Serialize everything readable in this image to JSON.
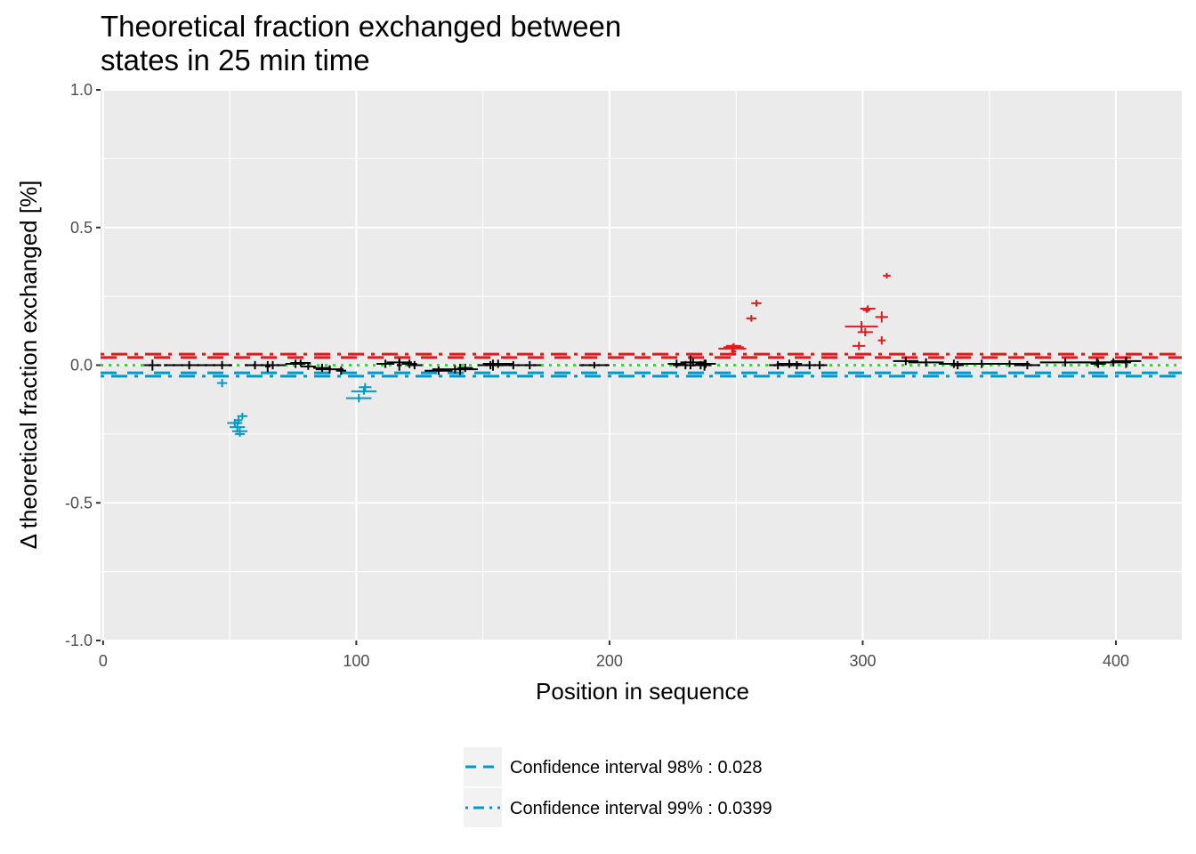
{
  "chart_data": {
    "type": "scatter",
    "title": [
      "Theoretical fraction exchanged between",
      "states in 25 min time"
    ],
    "xlabel": "Position in sequence",
    "ylabel": "Δ theoretical fraction exchanged [%]",
    "xlim": [
      -1,
      426
    ],
    "ylim": [
      -1.0,
      1.0
    ],
    "x_ticks": [
      0,
      100,
      200,
      300,
      400
    ],
    "x_tick_labels": [
      "0",
      "100",
      "200",
      "300",
      "400"
    ],
    "y_ticks": [
      -1.0,
      -0.5,
      0.0,
      0.5,
      1.0
    ],
    "y_tick_labels": [
      "-1.0",
      "-0.5",
      "0.0",
      "0.5",
      "1.0"
    ],
    "grid": true,
    "legend_position": "bottom",
    "colors": {
      "panel": "#ebebeb",
      "grid": "#ffffff",
      "significant_positive": "#e31a1c",
      "significant_negative": "#0099cc",
      "not_significant": "#000000",
      "zero_line": "#00ff00",
      "ci98_upper": "#e31a1c",
      "ci98_lower": "#0099cc",
      "legend_key_bg": "#f2f2f2"
    },
    "confidence_lines": [
      {
        "name": "Confidence interval 98% : 0.028",
        "value": 0.028,
        "style": "dashed"
      },
      {
        "name": "Confidence interval 99% : 0.0399",
        "value": 0.0399,
        "style": "dotdash"
      }
    ],
    "reference_line": {
      "value": 0.0,
      "style": "dotted"
    },
    "series": [
      {
        "category": "significant_positive",
        "points": [
          {
            "start": 243,
            "end": 254,
            "y": 0.06,
            "err": 0.015
          },
          {
            "start": 246,
            "end": 252,
            "y": 0.07,
            "err": 0.01
          },
          {
            "start": 245,
            "end": 253,
            "y": 0.065,
            "err": 0.012
          },
          {
            "start": 248,
            "end": 250,
            "y": 0.05,
            "err": 0.015
          },
          {
            "start": 254,
            "end": 258,
            "y": 0.17,
            "err": 0.012
          },
          {
            "start": 256,
            "end": 260,
            "y": 0.225,
            "err": 0.012
          },
          {
            "start": 293,
            "end": 306,
            "y": 0.14,
            "err": 0.02
          },
          {
            "start": 299,
            "end": 305,
            "y": 0.205,
            "err": 0.012
          },
          {
            "start": 298,
            "end": 304,
            "y": 0.12,
            "err": 0.015
          },
          {
            "start": 296,
            "end": 301,
            "y": 0.07,
            "err": 0.015
          },
          {
            "start": 300,
            "end": 303,
            "y": 0.2,
            "err": 0.01
          },
          {
            "start": 305,
            "end": 310,
            "y": 0.175,
            "err": 0.02
          },
          {
            "start": 306,
            "end": 309,
            "y": 0.09,
            "err": 0.015
          },
          {
            "start": 308,
            "end": 311,
            "y": 0.325,
            "err": 0.01
          }
        ]
      },
      {
        "category": "significant_negative",
        "points": [
          {
            "start": 45,
            "end": 49,
            "y": -0.065,
            "err": 0.015
          },
          {
            "start": 49,
            "end": 55,
            "y": -0.21,
            "err": 0.015
          },
          {
            "start": 50,
            "end": 56,
            "y": -0.225,
            "err": 0.02
          },
          {
            "start": 51,
            "end": 57,
            "y": -0.24,
            "err": 0.015
          },
          {
            "start": 52,
            "end": 55,
            "y": -0.2,
            "err": 0.015
          },
          {
            "start": 52,
            "end": 56,
            "y": -0.25,
            "err": 0.01
          },
          {
            "start": 53,
            "end": 57,
            "y": -0.185,
            "err": 0.012
          },
          {
            "start": 96,
            "end": 106,
            "y": -0.12,
            "err": 0.015
          },
          {
            "start": 98,
            "end": 108,
            "y": -0.095,
            "err": 0.012
          },
          {
            "start": 101,
            "end": 106,
            "y": -0.08,
            "err": 0.015
          }
        ]
      },
      {
        "category": "not_significant",
        "points": [
          {
            "start": 16,
            "end": 23,
            "y": 0.0,
            "err": 0.02
          },
          {
            "start": 24,
            "end": 44,
            "y": 0.0,
            "err": 0.015
          },
          {
            "start": 43,
            "end": 51,
            "y": 0.0,
            "err": 0.015
          },
          {
            "start": 56,
            "end": 64,
            "y": 0.0,
            "err": 0.015
          },
          {
            "start": 62,
            "end": 72,
            "y": 0.0,
            "err": 0.015
          },
          {
            "start": 64,
            "end": 66,
            "y": -0.005,
            "err": 0.02
          },
          {
            "start": 72,
            "end": 80,
            "y": 0.005,
            "err": 0.015
          },
          {
            "start": 74,
            "end": 82,
            "y": 0.008,
            "err": 0.012
          },
          {
            "start": 78,
            "end": 84,
            "y": -0.005,
            "err": 0.012
          },
          {
            "start": 83,
            "end": 90,
            "y": -0.01,
            "err": 0.015
          },
          {
            "start": 84,
            "end": 95,
            "y": -0.015,
            "err": 0.015
          },
          {
            "start": 92,
            "end": 96,
            "y": -0.02,
            "err": 0.015
          },
          {
            "start": 108,
            "end": 115,
            "y": 0.005,
            "err": 0.015
          },
          {
            "start": 112,
            "end": 122,
            "y": 0.01,
            "err": 0.015
          },
          {
            "start": 116,
            "end": 118,
            "y": 0.0,
            "err": 0.02
          },
          {
            "start": 118,
            "end": 124,
            "y": 0.005,
            "err": 0.015
          },
          {
            "start": 120,
            "end": 126,
            "y": 0.0,
            "err": 0.015
          },
          {
            "start": 127,
            "end": 138,
            "y": -0.02,
            "err": 0.015
          },
          {
            "start": 130,
            "end": 148,
            "y": -0.015,
            "err": 0.015
          },
          {
            "start": 139,
            "end": 143,
            "y": -0.015,
            "err": 0.02
          },
          {
            "start": 140,
            "end": 146,
            "y": -0.01,
            "err": 0.015
          },
          {
            "start": 148,
            "end": 158,
            "y": 0.0,
            "err": 0.015
          },
          {
            "start": 150,
            "end": 162,
            "y": 0.005,
            "err": 0.015
          },
          {
            "start": 152,
            "end": 156,
            "y": 0.0,
            "err": 0.02
          },
          {
            "start": 156,
            "end": 168,
            "y": 0.0,
            "err": 0.015
          },
          {
            "start": 164,
            "end": 173,
            "y": 0.0,
            "err": 0.015
          },
          {
            "start": 188,
            "end": 200,
            "y": 0.0,
            "err": 0.012
          },
          {
            "start": 223,
            "end": 230,
            "y": 0.005,
            "err": 0.015
          },
          {
            "start": 225,
            "end": 235,
            "y": 0.0,
            "err": 0.015
          },
          {
            "start": 228,
            "end": 238,
            "y": 0.01,
            "err": 0.015
          },
          {
            "start": 231,
            "end": 233,
            "y": 0.01,
            "err": 0.025
          },
          {
            "start": 232,
            "end": 240,
            "y": 0.0,
            "err": 0.015
          },
          {
            "start": 234,
            "end": 242,
            "y": 0.005,
            "err": 0.015
          },
          {
            "start": 236,
            "end": 239,
            "y": 0.0,
            "err": 0.02
          },
          {
            "start": 263,
            "end": 270,
            "y": 0.0,
            "err": 0.015
          },
          {
            "start": 266,
            "end": 276,
            "y": 0.005,
            "err": 0.015
          },
          {
            "start": 270,
            "end": 278,
            "y": 0.0,
            "err": 0.015
          },
          {
            "start": 274,
            "end": 284,
            "y": 0.0,
            "err": 0.015
          },
          {
            "start": 280,
            "end": 286,
            "y": 0.0,
            "err": 0.015
          },
          {
            "start": 312,
            "end": 322,
            "y": 0.015,
            "err": 0.015
          },
          {
            "start": 318,
            "end": 332,
            "y": 0.01,
            "err": 0.015
          },
          {
            "start": 330,
            "end": 342,
            "y": 0.005,
            "err": 0.015
          },
          {
            "start": 335,
            "end": 340,
            "y": 0.0,
            "err": 0.015
          },
          {
            "start": 342,
            "end": 352,
            "y": 0.005,
            "err": 0.015
          },
          {
            "start": 350,
            "end": 366,
            "y": 0.005,
            "err": 0.012
          },
          {
            "start": 360,
            "end": 370,
            "y": 0.0,
            "err": 0.015
          },
          {
            "start": 370,
            "end": 390,
            "y": 0.01,
            "err": 0.015
          },
          {
            "start": 385,
            "end": 400,
            "y": 0.01,
            "err": 0.015
          },
          {
            "start": 390,
            "end": 396,
            "y": 0.005,
            "err": 0.015
          },
          {
            "start": 394,
            "end": 404,
            "y": 0.01,
            "err": 0.015
          },
          {
            "start": 398,
            "end": 410,
            "y": 0.015,
            "err": 0.015
          },
          {
            "start": 402,
            "end": 406,
            "y": 0.01,
            "err": 0.02
          }
        ]
      }
    ]
  }
}
